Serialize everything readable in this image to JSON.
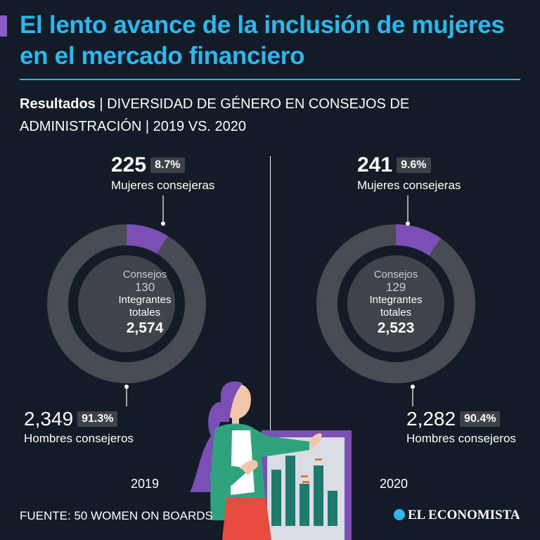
{
  "title": "El lento avance de la inclusión de mujeres en el mercado financiero",
  "subtitle": {
    "bold": "Resultados",
    "rest": " | DIVERSIDAD DE GÉNERO EN CONSEJOS DE ADMINISTRACIÓN | 2019 VS. 2020"
  },
  "colors": {
    "accent": "#29b9ef",
    "women": "#7b4fb5",
    "men": "#474b52",
    "background": "#131b26"
  },
  "chart_data": [
    {
      "type": "pie",
      "year": "2019",
      "women": {
        "count": "225",
        "pct": "8.7%",
        "label": "Mujeres consejeras",
        "value": 8.7
      },
      "men": {
        "count": "2,349",
        "pct": "91.3%",
        "label": "Hombres consejeros",
        "value": 91.3
      },
      "center": {
        "consejos_label": "Consejos",
        "consejos": "130",
        "integrantes_label": "Integrantes totales",
        "total": "2,574"
      }
    },
    {
      "type": "pie",
      "year": "2020",
      "women": {
        "count": "241",
        "pct": "9.6%",
        "label": "Mujeres consejeras",
        "value": 9.6
      },
      "men": {
        "count": "2,282",
        "pct": "90.4%",
        "label": "Hombres consejeros",
        "value": 90.4
      },
      "center": {
        "consejos_label": "Consejos",
        "consejos": "129",
        "integrantes_label": "Integrantes totales",
        "total": "2,523"
      }
    }
  ],
  "source": "FUENTE: 50 WOMEN ON BOARDS",
  "brand": "EL ECONOMISTA"
}
